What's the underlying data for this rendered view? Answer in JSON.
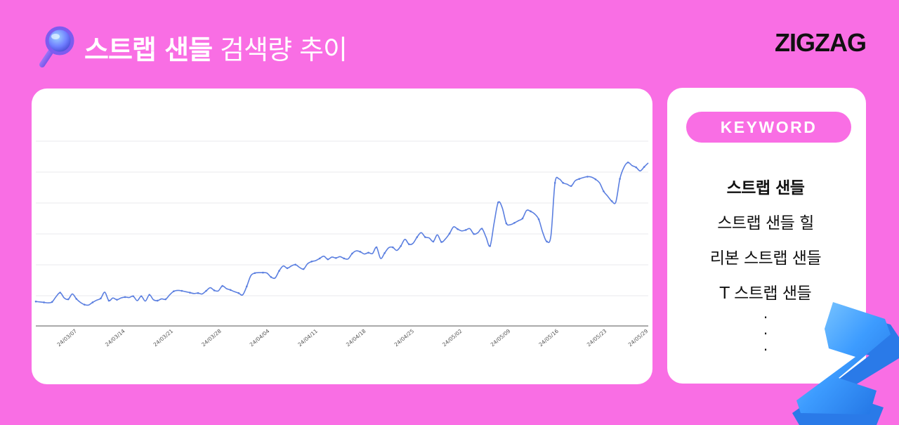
{
  "header": {
    "title_bold": "스트랩 샌들",
    "title_light": "검색량 추이",
    "brand": "ZIGZAG",
    "icon": "magnifier-icon"
  },
  "keywords": {
    "label": "KEYWORD",
    "items": [
      {
        "text": "스트랩 샌들",
        "active": true
      },
      {
        "text": "스트랩 샌들 힐",
        "active": false
      },
      {
        "text": "리본 스트랩 샌들",
        "active": false
      },
      {
        "text": "T 스트랩 샌들",
        "active": false
      }
    ],
    "more": [
      "·",
      "·",
      "·"
    ]
  },
  "colors": {
    "background": "#f96ee4",
    "line": "#5b7fe0",
    "accent_z": "#4aa8ff"
  },
  "chart_data": {
    "type": "line",
    "title": "",
    "xlabel": "",
    "ylabel": "",
    "grid": true,
    "x_ticks": [
      "24/03/07",
      "24/03/14",
      "24/03/21",
      "24/03/28",
      "24/04/04",
      "24/04/11",
      "24/04/18",
      "24/04/25",
      "24/05/02",
      "24/05/09",
      "24/05/16",
      "24/05/23",
      "24/05/29"
    ],
    "series": [
      {
        "name": "",
        "start_date": "2024-03-01",
        "values": [
          55,
          54,
          53,
          52,
          54,
          66,
          75,
          63,
          60,
          72,
          61,
          53,
          48,
          47,
          53,
          58,
          62,
          76,
          57,
          63,
          59,
          63,
          65,
          64,
          67,
          57,
          67,
          56,
          70,
          59,
          57,
          61,
          60,
          70,
          78,
          80,
          79,
          77,
          75,
          73,
          74,
          72,
          79,
          86,
          80,
          79,
          90,
          84,
          81,
          77,
          74,
          70,
          89,
          113,
          119,
          120,
          120,
          119,
          110,
          108,
          124,
          135,
          130,
          135,
          138,
          132,
          128,
          140,
          145,
          147,
          152,
          157,
          150,
          155,
          153,
          156,
          152,
          151,
          163,
          169,
          167,
          162,
          165,
          163,
          177,
          152,
          164,
          176,
          177,
          170,
          180,
          195,
          184,
          186,
          200,
          210,
          200,
          198,
          190,
          205,
          189,
          196,
          208,
          223,
          218,
          214,
          216,
          219,
          207,
          210,
          219,
          200,
          180,
          232,
          278,
          266,
          231,
          228,
          232,
          237,
          242,
          260,
          258,
          252,
          240,
          210,
          190,
          203,
          322,
          331,
          322,
          319,
          315,
          327,
          331,
          334,
          336,
          335,
          330,
          322,
          303,
          292,
          281,
          279,
          331,
          357,
          368,
          361,
          357,
          349,
          358,
          367
        ],
        "note": ""
      }
    ],
    "y_grid_lines": 6,
    "legend": "none"
  }
}
